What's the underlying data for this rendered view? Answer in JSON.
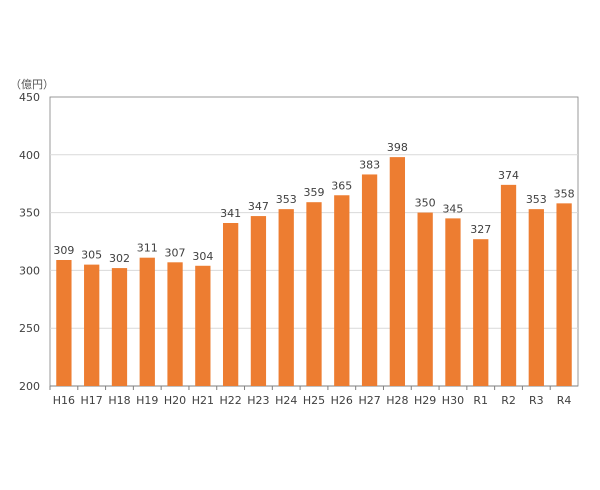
{
  "chart_data": {
    "type": "bar",
    "unit": "（億円）",
    "categories": [
      "H16",
      "H17",
      "H18",
      "H19",
      "H20",
      "H21",
      "H22",
      "H23",
      "H24",
      "H25",
      "H26",
      "H27",
      "H28",
      "H29",
      "H30",
      "R1",
      "R2",
      "R3",
      "R4"
    ],
    "values": [
      309,
      305,
      302,
      311,
      307,
      304,
      341,
      347,
      353,
      359,
      365,
      383,
      398,
      350,
      345,
      327,
      374,
      353,
      358
    ],
    "ylim": [
      200,
      450
    ],
    "yticks": [
      200,
      250,
      300,
      350,
      400,
      450
    ],
    "grid": true,
    "legend": "none",
    "colors": {
      "bar": "#ED7D31",
      "grid": "#D9D9D9",
      "axis": "#7F7F7F",
      "text": "#404040"
    }
  }
}
